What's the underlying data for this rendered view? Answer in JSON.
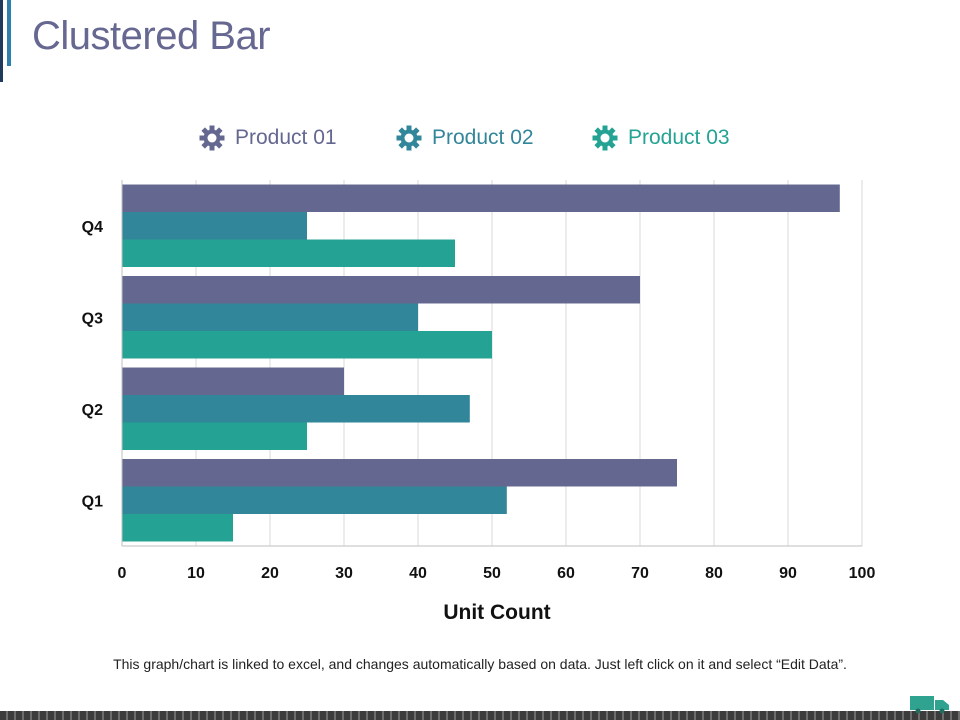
{
  "page": {
    "title": "Clustered Bar",
    "footnote": "This graph/chart is linked to excel, and changes automatically  based on data. Just left click on it and select “Edit Data”."
  },
  "legend": [
    {
      "label": "Product 01",
      "color": "#646890",
      "icon": "gear-icon"
    },
    {
      "label": "Product 02",
      "color": "#32869a",
      "icon": "gear-icon"
    },
    {
      "label": "Product 03",
      "color": "#24a394",
      "icon": "gear-icon"
    }
  ],
  "chart_data": {
    "type": "bar",
    "orientation": "horizontal",
    "title": "Clustered Bar",
    "categories": [
      "Q1",
      "Q2",
      "Q3",
      "Q4"
    ],
    "series": [
      {
        "name": "Product 01",
        "values": [
          75,
          30,
          70,
          97
        ],
        "color": "#646890"
      },
      {
        "name": "Product 02",
        "values": [
          52,
          47,
          40,
          25
        ],
        "color": "#32869a"
      },
      {
        "name": "Product 03",
        "values": [
          15,
          25,
          50,
          45
        ],
        "color": "#24a394"
      }
    ],
    "xlabel": "Unit Count",
    "ylabel": "",
    "xlim": [
      0,
      100
    ],
    "xticks": [
      0,
      10,
      20,
      30,
      40,
      50,
      60,
      70,
      80,
      90,
      100
    ],
    "grid": true,
    "legend_position": "top"
  }
}
